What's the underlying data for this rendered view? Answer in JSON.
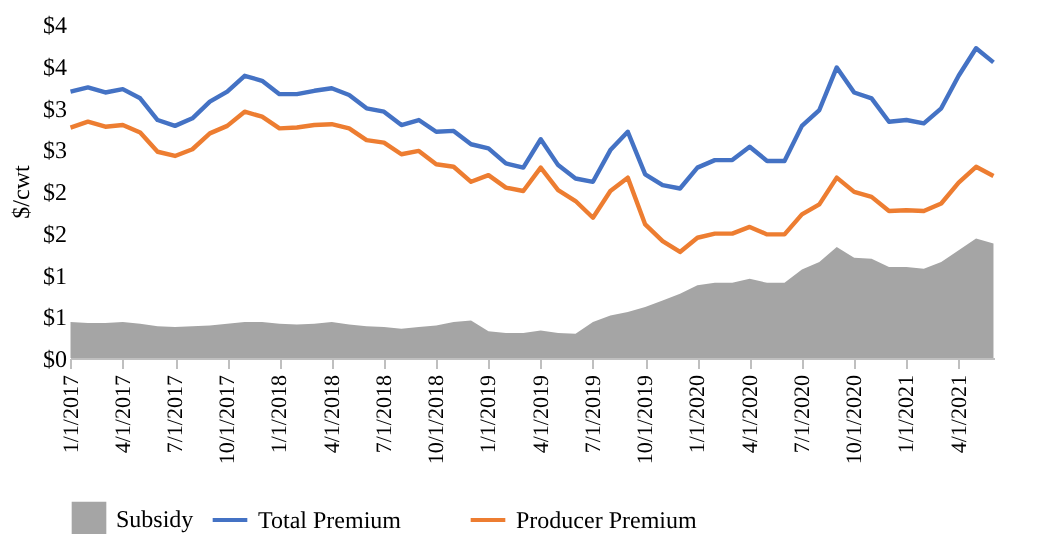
{
  "chart_data": {
    "type": "line",
    "ylabel": "$/cwt",
    "categories": [
      "1/1/2017",
      null,
      null,
      "4/1/2017",
      null,
      null,
      "7/1/2017",
      null,
      null,
      "10/1/2017",
      null,
      null,
      "1/1/2018",
      null,
      null,
      "4/1/2018",
      null,
      null,
      "7/1/2018",
      null,
      null,
      "10/1/2018",
      null,
      null,
      "1/1/2019",
      null,
      null,
      "4/1/2019",
      null,
      null,
      "7/1/2019",
      null,
      null,
      "10/1/2019",
      null,
      null,
      "1/1/2020",
      null,
      null,
      "4/1/2020",
      null,
      null,
      "7/1/2020",
      null,
      null,
      "10/1/2020",
      null,
      null,
      "1/1/2021",
      null,
      null,
      "4/1/2021",
      null,
      null
    ],
    "series": [
      {
        "name": "Subsidy",
        "type": "area",
        "color": "#a5a5a5",
        "values": [
          0.43,
          0.42,
          0.42,
          0.43,
          0.41,
          0.38,
          0.37,
          0.38,
          0.39,
          0.41,
          0.43,
          0.43,
          0.41,
          0.4,
          0.41,
          0.43,
          0.4,
          0.38,
          0.37,
          0.35,
          0.37,
          0.39,
          0.43,
          0.45,
          0.32,
          0.3,
          0.3,
          0.33,
          0.3,
          0.29,
          0.43,
          0.51,
          0.55,
          0.61,
          0.69,
          0.77,
          0.87,
          0.9,
          0.9,
          0.95,
          0.9,
          0.9,
          1.06,
          1.15,
          1.33,
          1.2,
          1.19,
          1.09,
          1.09,
          1.07,
          1.15,
          1.29,
          1.43,
          1.37
        ]
      },
      {
        "name": "Total Premium",
        "type": "line",
        "color": "#4472c4",
        "values": [
          3.19,
          3.24,
          3.18,
          3.22,
          3.11,
          2.85,
          2.78,
          2.87,
          3.07,
          3.19,
          3.38,
          3.32,
          3.16,
          3.16,
          3.2,
          3.23,
          3.15,
          2.99,
          2.95,
          2.79,
          2.85,
          2.71,
          2.72,
          2.56,
          2.51,
          2.33,
          2.28,
          2.62,
          2.31,
          2.15,
          2.11,
          2.49,
          2.71,
          2.2,
          2.07,
          2.03,
          2.28,
          2.37,
          2.37,
          2.53,
          2.36,
          2.36,
          2.78,
          2.97,
          3.48,
          3.18,
          3.11,
          2.83,
          2.85,
          2.81,
          2.99,
          3.38,
          3.71,
          3.54
        ]
      },
      {
        "name": "Producer Premium",
        "type": "line",
        "color": "#ed7d31",
        "values": [
          2.76,
          2.83,
          2.77,
          2.79,
          2.7,
          2.47,
          2.42,
          2.5,
          2.69,
          2.78,
          2.95,
          2.89,
          2.75,
          2.76,
          2.79,
          2.8,
          2.75,
          2.61,
          2.58,
          2.44,
          2.48,
          2.32,
          2.29,
          2.11,
          2.19,
          2.04,
          2.0,
          2.28,
          2.01,
          1.88,
          1.68,
          2.0,
          2.16,
          1.6,
          1.4,
          1.27,
          1.44,
          1.49,
          1.49,
          1.57,
          1.48,
          1.48,
          1.72,
          1.84,
          2.16,
          1.99,
          1.93,
          1.76,
          1.77,
          1.76,
          1.85,
          2.1,
          2.29,
          2.18
        ]
      }
    ],
    "ylim": [
      0,
      4
    ],
    "yticks": [
      {
        "value": 0,
        "label": "$0"
      },
      {
        "value": 0.5,
        "label": "$1"
      },
      {
        "value": 1,
        "label": "$1"
      },
      {
        "value": 1.5,
        "label": "$2"
      },
      {
        "value": 2,
        "label": "$2"
      },
      {
        "value": 2.5,
        "label": "$3"
      },
      {
        "value": 3,
        "label": "$3"
      },
      {
        "value": 3.5,
        "label": "$4"
      },
      {
        "value": 4,
        "label": "$4"
      }
    ],
    "grid": false,
    "legend": "bottom"
  }
}
